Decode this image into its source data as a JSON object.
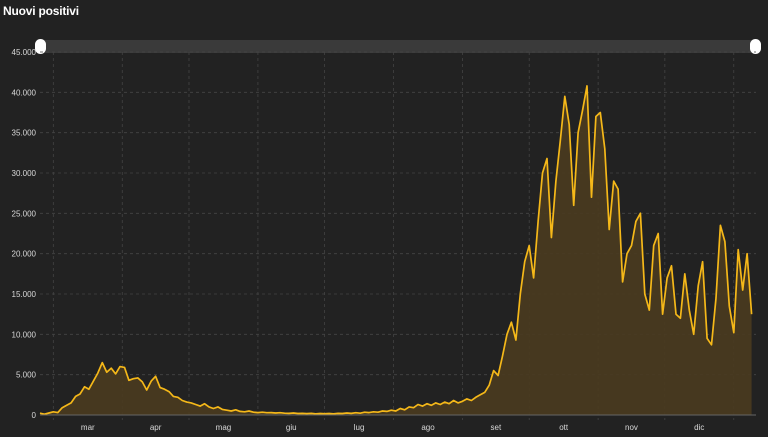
{
  "title": "Nuovi positivi",
  "colors": {
    "background": "#222222",
    "line": "#f5b819",
    "area": "#4a3b1f",
    "grid": "#444444",
    "slider": "#3a3a3a"
  },
  "chart_data": {
    "type": "area",
    "title": "Nuovi positivi",
    "xlabel": "",
    "ylabel": "",
    "ylim": [
      0,
      45000
    ],
    "yticks": [
      0,
      5000,
      10000,
      15000,
      20000,
      25000,
      30000,
      35000,
      40000,
      45000
    ],
    "ytick_labels": [
      "0",
      "5.000",
      "10.000",
      "15.000",
      "20.000",
      "25.000",
      "30.000",
      "35.000",
      "40.000",
      "45.000"
    ],
    "xticks": [
      "mar",
      "apr",
      "mag",
      "giu",
      "lug",
      "ago",
      "set",
      "ott",
      "nov",
      "dic"
    ],
    "grid": true,
    "x_first": "2020-02-24",
    "series": [
      {
        "points": [
          [
            0,
            220
          ],
          [
            2,
            100
          ],
          [
            4,
            250
          ],
          [
            6,
            400
          ],
          [
            8,
            300
          ],
          [
            10,
            900
          ],
          [
            12,
            1200
          ],
          [
            14,
            1500
          ],
          [
            16,
            2300
          ],
          [
            18,
            2600
          ],
          [
            20,
            3500
          ],
          [
            22,
            3200
          ],
          [
            24,
            4200
          ],
          [
            26,
            5200
          ],
          [
            28,
            6500
          ],
          [
            30,
            5300
          ],
          [
            32,
            5800
          ],
          [
            34,
            5100
          ],
          [
            36,
            6000
          ],
          [
            38,
            5900
          ],
          [
            40,
            4300
          ],
          [
            42,
            4500
          ],
          [
            44,
            4600
          ],
          [
            46,
            4100
          ],
          [
            48,
            3100
          ],
          [
            50,
            4200
          ],
          [
            52,
            4800
          ],
          [
            54,
            3400
          ],
          [
            56,
            3200
          ],
          [
            58,
            2900
          ],
          [
            60,
            2300
          ],
          [
            62,
            2200
          ],
          [
            64,
            1800
          ],
          [
            66,
            1600
          ],
          [
            68,
            1500
          ],
          [
            70,
            1300
          ],
          [
            72,
            1100
          ],
          [
            74,
            1400
          ],
          [
            76,
            1000
          ],
          [
            78,
            800
          ],
          [
            80,
            1000
          ],
          [
            82,
            700
          ],
          [
            84,
            600
          ],
          [
            86,
            500
          ],
          [
            88,
            650
          ],
          [
            90,
            450
          ],
          [
            92,
            400
          ],
          [
            94,
            500
          ],
          [
            96,
            350
          ],
          [
            98,
            300
          ],
          [
            100,
            350
          ],
          [
            102,
            280
          ],
          [
            104,
            300
          ],
          [
            106,
            250
          ],
          [
            108,
            280
          ],
          [
            110,
            220
          ],
          [
            112,
            200
          ],
          [
            114,
            250
          ],
          [
            116,
            180
          ],
          [
            118,
            200
          ],
          [
            120,
            170
          ],
          [
            122,
            200
          ],
          [
            124,
            150
          ],
          [
            126,
            180
          ],
          [
            128,
            160
          ],
          [
            130,
            180
          ],
          [
            132,
            150
          ],
          [
            134,
            200
          ],
          [
            136,
            180
          ],
          [
            138,
            250
          ],
          [
            140,
            200
          ],
          [
            142,
            280
          ],
          [
            144,
            220
          ],
          [
            146,
            350
          ],
          [
            148,
            300
          ],
          [
            150,
            400
          ],
          [
            152,
            350
          ],
          [
            154,
            500
          ],
          [
            156,
            450
          ],
          [
            158,
            600
          ],
          [
            160,
            500
          ],
          [
            162,
            800
          ],
          [
            164,
            650
          ],
          [
            166,
            1000
          ],
          [
            168,
            900
          ],
          [
            170,
            1300
          ],
          [
            172,
            1100
          ],
          [
            174,
            1400
          ],
          [
            176,
            1200
          ],
          [
            178,
            1500
          ],
          [
            180,
            1300
          ],
          [
            182,
            1600
          ],
          [
            184,
            1400
          ],
          [
            186,
            1800
          ],
          [
            188,
            1500
          ],
          [
            190,
            1700
          ],
          [
            192,
            2000
          ],
          [
            194,
            1800
          ],
          [
            196,
            2200
          ],
          [
            198,
            2500
          ],
          [
            200,
            2800
          ],
          [
            202,
            3700
          ],
          [
            204,
            5500
          ],
          [
            206,
            4900
          ],
          [
            208,
            7300
          ],
          [
            210,
            10000
          ],
          [
            212,
            11500
          ],
          [
            214,
            9300
          ],
          [
            216,
            15000
          ],
          [
            218,
            19000
          ],
          [
            220,
            21000
          ],
          [
            222,
            17000
          ],
          [
            224,
            24000
          ],
          [
            226,
            30000
          ],
          [
            228,
            31800
          ],
          [
            230,
            22000
          ],
          [
            232,
            29000
          ],
          [
            234,
            34000
          ],
          [
            236,
            39500
          ],
          [
            238,
            36000
          ],
          [
            240,
            26000
          ],
          [
            242,
            35000
          ],
          [
            244,
            37800
          ],
          [
            246,
            40800
          ],
          [
            248,
            27000
          ],
          [
            250,
            37000
          ],
          [
            252,
            37500
          ],
          [
            254,
            33000
          ],
          [
            256,
            23000
          ],
          [
            258,
            29000
          ],
          [
            260,
            28000
          ],
          [
            262,
            16500
          ],
          [
            264,
            20000
          ],
          [
            266,
            21000
          ],
          [
            268,
            24000
          ],
          [
            270,
            25000
          ],
          [
            272,
            15000
          ],
          [
            274,
            13000
          ],
          [
            276,
            21000
          ],
          [
            278,
            22500
          ],
          [
            280,
            12500
          ],
          [
            282,
            17000
          ],
          [
            284,
            18500
          ],
          [
            286,
            12500
          ],
          [
            288,
            12000
          ],
          [
            290,
            17500
          ],
          [
            292,
            13000
          ],
          [
            294,
            10000
          ],
          [
            296,
            16000
          ],
          [
            298,
            19000
          ],
          [
            300,
            9500
          ],
          [
            302,
            8700
          ],
          [
            304,
            14500
          ],
          [
            306,
            23500
          ],
          [
            308,
            21500
          ],
          [
            310,
            13500
          ],
          [
            312,
            10200
          ],
          [
            314,
            20500
          ],
          [
            316,
            15500
          ],
          [
            318,
            20000
          ],
          [
            320,
            12500
          ]
        ]
      }
    ]
  }
}
